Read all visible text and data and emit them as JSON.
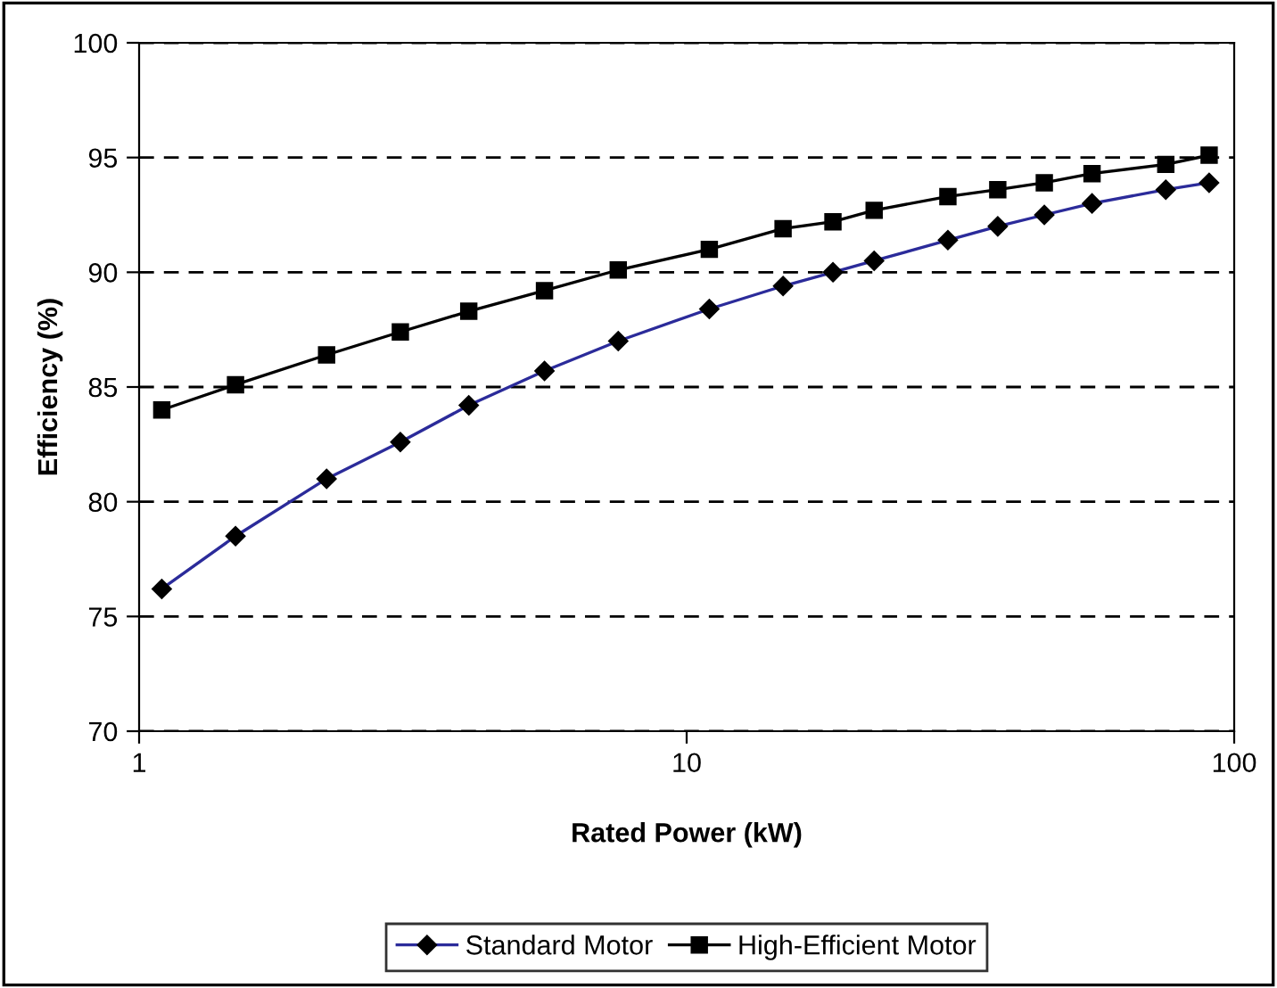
{
  "chart_data": {
    "type": "line",
    "xlabel": "Rated Power (kW)",
    "ylabel": "Efficiency (%)",
    "log": "x",
    "xlim": [
      1,
      100
    ],
    "xticks": [
      1,
      10,
      100
    ],
    "ylim": [
      70,
      100
    ],
    "yticks": [
      70,
      75,
      80,
      85,
      90,
      95,
      100
    ],
    "grid": "y",
    "legend": "bottom",
    "line_style": "solid",
    "x": [
      1.1,
      1.5,
      2.2,
      3,
      4,
      5.5,
      7.5,
      11,
      15,
      18.5,
      22,
      30,
      37,
      45,
      55,
      75,
      90
    ],
    "series": [
      {
        "name": "Standard Motor",
        "color": "#2b2b9a",
        "marker": "diamond",
        "values": [
          76.2,
          78.5,
          81.0,
          82.6,
          84.2,
          85.7,
          87.0,
          88.4,
          89.4,
          90.0,
          90.5,
          91.4,
          92.0,
          92.5,
          93.0,
          93.6,
          93.9
        ]
      },
      {
        "name": "High-Efficient Motor",
        "color": "#000000",
        "marker": "square",
        "values": [
          84.0,
          85.1,
          86.4,
          87.4,
          88.3,
          89.2,
          90.1,
          91.0,
          91.9,
          92.2,
          92.7,
          93.3,
          93.6,
          93.9,
          94.3,
          94.7,
          95.1
        ]
      }
    ]
  }
}
